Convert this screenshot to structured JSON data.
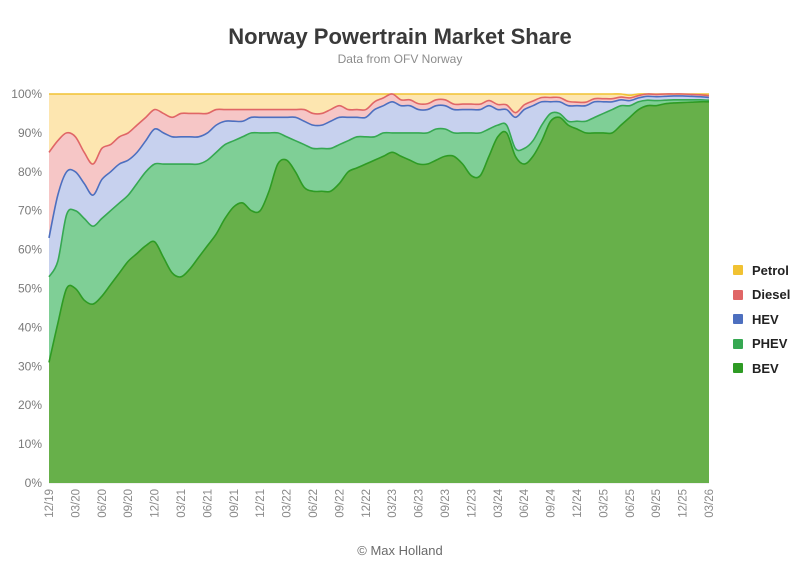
{
  "title": "Norway Powertrain Market Share",
  "subtitle": "Data from OFV Norway",
  "credit": "© Max Holland",
  "chart_data": {
    "type": "area",
    "stacked": true,
    "y_unit": "%",
    "ylim": [
      0,
      100
    ],
    "y_ticks": [
      "0%",
      "10%",
      "20%",
      "30%",
      "40%",
      "50%",
      "60%",
      "70%",
      "80%",
      "90%",
      "100%"
    ],
    "y_tick_values": [
      0,
      10,
      20,
      30,
      40,
      50,
      60,
      70,
      80,
      90,
      100
    ],
    "grid": true,
    "legend_position": "right",
    "x_labels": [
      "12/19",
      "03/20",
      "06/20",
      "09/20",
      "12/20",
      "03/21",
      "06/21",
      "09/21",
      "12/21",
      "03/22",
      "06/22",
      "09/22",
      "12/22",
      "03/23",
      "06/23",
      "09/23",
      "12/23",
      "03/24",
      "06/24",
      "09/24",
      "12/24",
      "03/25",
      "06/25",
      "09/25",
      "12/25",
      "03/26"
    ],
    "x_months": [
      "2019-12",
      "2020-01",
      "2020-02",
      "2020-03",
      "2020-04",
      "2020-05",
      "2020-06",
      "2020-07",
      "2020-08",
      "2020-09",
      "2020-10",
      "2020-11",
      "2020-12",
      "2021-01",
      "2021-02",
      "2021-03",
      "2021-04",
      "2021-05",
      "2021-06",
      "2021-07",
      "2021-08",
      "2021-09",
      "2021-10",
      "2021-11",
      "2021-12",
      "2022-01",
      "2022-02",
      "2022-03",
      "2022-04",
      "2022-05",
      "2022-06",
      "2022-07",
      "2022-08",
      "2022-09",
      "2022-10",
      "2022-11",
      "2022-12",
      "2023-01",
      "2023-02",
      "2023-03",
      "2023-04",
      "2023-05",
      "2023-06",
      "2023-07",
      "2023-08",
      "2023-09",
      "2023-10",
      "2023-11",
      "2023-12",
      "2024-01",
      "2024-02",
      "2024-03",
      "2024-04",
      "2024-05",
      "2024-06",
      "2024-07",
      "2024-08",
      "2024-09",
      "2024-10",
      "2024-11",
      "2024-12",
      "2025-01",
      "2025-02",
      "2025-03",
      "2025-04",
      "2025-05",
      "2025-06",
      "2025-07",
      "2025-08",
      "2025-09",
      "2025-10",
      "2025-11",
      "2025-12",
      "2026-01",
      "2026-02",
      "2026-03"
    ],
    "series": [
      {
        "name": "BEV",
        "color": "#67b04a",
        "line": "#2e9b24",
        "values": [
          31,
          41,
          50,
          50,
          47,
          46,
          48,
          51,
          54,
          57,
          59,
          61,
          62,
          58,
          54,
          53,
          55,
          58,
          61,
          64,
          68,
          71,
          72,
          70,
          70,
          75,
          82,
          83,
          80,
          76,
          75,
          75,
          75,
          77,
          80,
          81,
          82,
          83,
          84,
          85,
          84,
          83,
          82,
          82,
          83,
          84,
          84,
          82,
          79,
          79,
          84,
          89,
          90,
          84,
          82,
          84,
          88,
          93,
          94,
          92,
          91,
          90,
          90,
          90,
          90,
          92,
          94,
          96,
          97,
          97,
          97.5,
          97.7,
          97.8,
          97.9,
          98,
          98
        ]
      },
      {
        "name": "PHEV",
        "color": "#7fcf96",
        "line": "#36a852",
        "values": [
          22,
          16,
          19,
          20,
          21,
          20,
          20,
          19,
          18,
          17,
          18,
          19,
          20,
          24,
          28,
          29,
          27,
          24,
          22,
          21,
          19,
          17,
          17,
          20,
          20,
          15,
          8,
          6,
          8,
          11,
          11,
          11,
          11,
          10,
          8,
          8,
          7,
          6,
          6,
          5,
          6,
          7,
          8,
          8,
          8,
          7,
          6,
          8,
          11,
          11,
          7,
          3,
          2,
          2,
          4,
          4,
          4,
          2,
          1,
          1,
          2,
          3,
          4,
          5,
          6,
          5,
          3,
          2,
          1.4,
          1.3,
          0.9,
          0.8,
          0.7,
          0.6,
          0.5,
          0.4
        ]
      },
      {
        "name": "HEV",
        "color": "#c7d1ee",
        "line": "#4d6fbf",
        "values": [
          10,
          17,
          11,
          10,
          9,
          8,
          10,
          10,
          10,
          9,
          8,
          8,
          9,
          8,
          7,
          7,
          7,
          7,
          7,
          7,
          6,
          5,
          4,
          4,
          4,
          4,
          4,
          5,
          6,
          6,
          6,
          6,
          7,
          7,
          6,
          5,
          5,
          7,
          7,
          8,
          7,
          7,
          6,
          6,
          6,
          6,
          6,
          6,
          6,
          6,
          6,
          4,
          4,
          8,
          10,
          9,
          6,
          3,
          3,
          4,
          4,
          4,
          4,
          3,
          2,
          1.5,
          1.3,
          1,
          1,
          1,
          1,
          1,
          1,
          0.9,
          0.8,
          0.7
        ]
      },
      {
        "name": "Diesel",
        "color": "#f6c6c6",
        "line": "#e06666",
        "values": [
          22,
          14,
          10,
          9,
          8,
          8,
          8,
          7,
          7,
          7,
          7,
          6,
          5,
          5,
          5,
          6,
          6,
          6,
          5,
          4,
          3,
          3,
          3,
          2,
          2,
          2,
          2,
          2,
          2,
          3,
          3,
          3,
          3,
          3,
          2,
          2,
          2,
          2,
          2,
          2,
          1.5,
          1.5,
          1.5,
          1.5,
          1.5,
          1.5,
          1.4,
          1.4,
          1.4,
          1.4,
          1.3,
          1.3,
          1.2,
          1.2,
          1.2,
          1.2,
          1.1,
          1.1,
          1.1,
          1.1,
          0.9,
          0.9,
          0.8,
          0.8,
          0.8,
          0.7,
          0.7,
          0.6,
          0.6,
          0.6,
          0.6,
          0.5,
          0.5,
          0.5,
          0.5,
          0.5
        ]
      },
      {
        "name": "Petrol",
        "color": "#fde6b0",
        "line": "#f1c232",
        "values": [
          15,
          12,
          10,
          11,
          15,
          18,
          14,
          13,
          11,
          10,
          8,
          6,
          4,
          5,
          6,
          5,
          5,
          5,
          5,
          4,
          4,
          4,
          4,
          4,
          4,
          4,
          4,
          4,
          4,
          4,
          5,
          5,
          4,
          3,
          4,
          4,
          4,
          2,
          1,
          0,
          1.5,
          1.5,
          2.5,
          2.5,
          1.5,
          1.5,
          2.6,
          2.6,
          2.6,
          2.6,
          1.7,
          2.7,
          2.8,
          4.8,
          2.8,
          1.8,
          0.9,
          0.9,
          0.9,
          1.9,
          2.1,
          2.1,
          1.2,
          1.2,
          1.2,
          0.8,
          0.7,
          0.4,
          0,
          0.1,
          0,
          0,
          0,
          0.1,
          0.2,
          0.4
        ]
      }
    ]
  },
  "legend": [
    {
      "label": "Petrol",
      "color": "#f1c232"
    },
    {
      "label": "Diesel",
      "color": "#e06666"
    },
    {
      "label": "HEV",
      "color": "#4d6fbf"
    },
    {
      "label": "PHEV",
      "color": "#36a852"
    },
    {
      "label": "BEV",
      "color": "#2e9b24"
    }
  ]
}
